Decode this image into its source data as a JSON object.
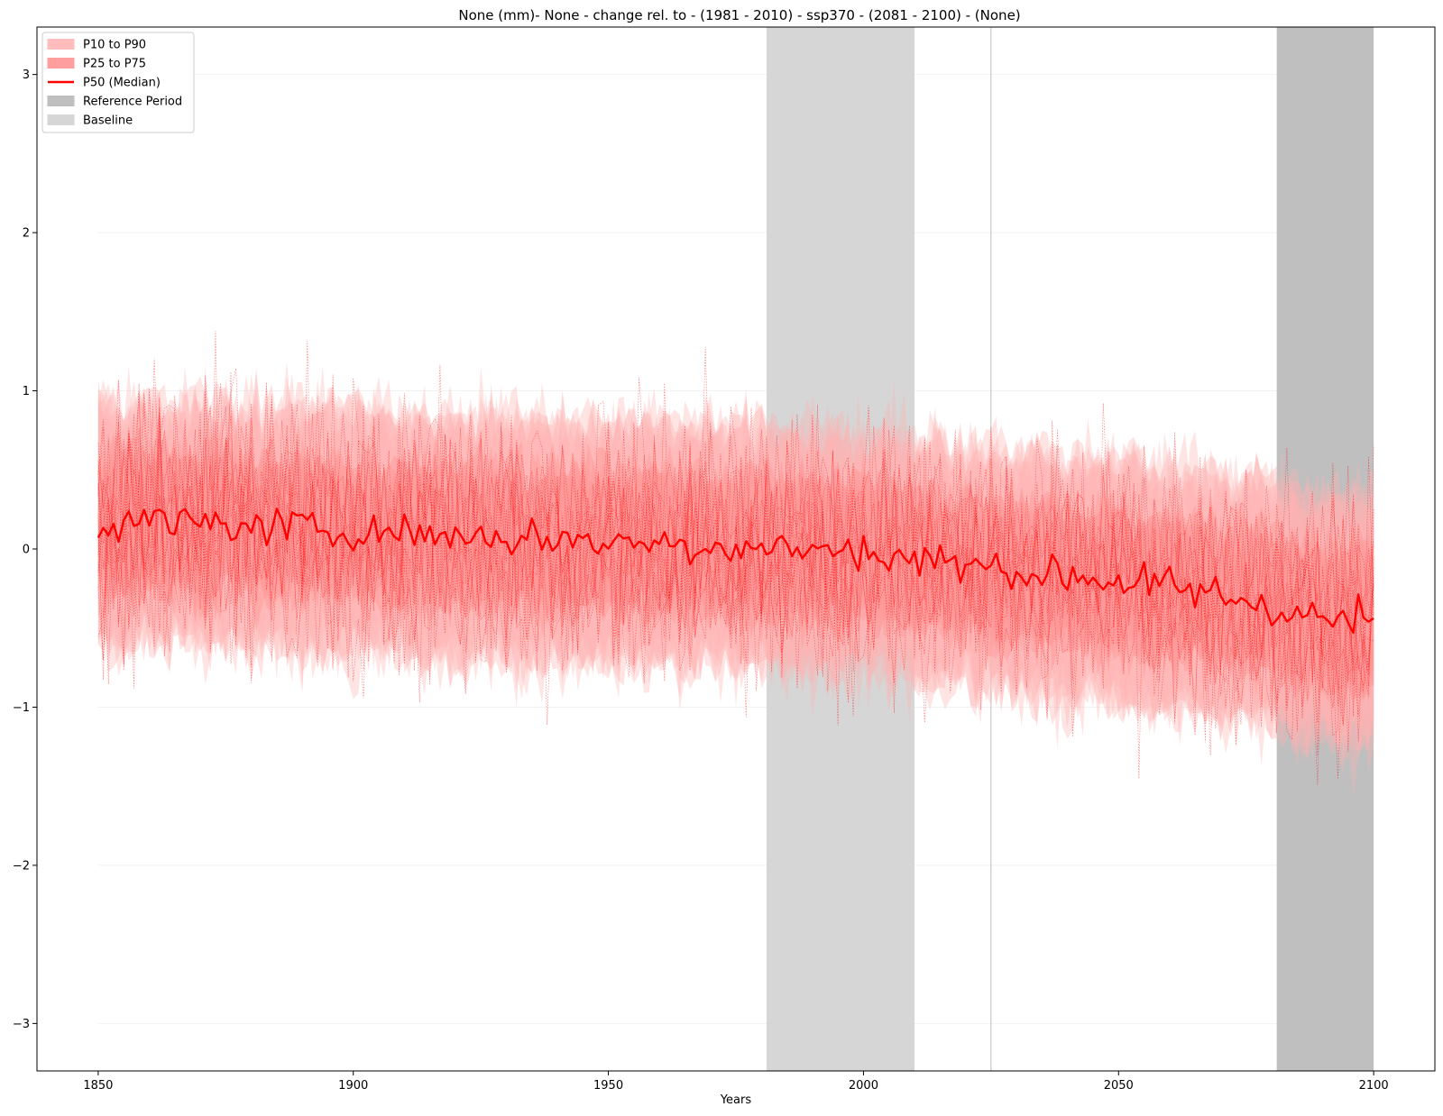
{
  "chart_data": {
    "type": "line",
    "title": "None (mm)- None - change rel. to - (1981 - 2010)  - ssp370  - (2081 - 2100) - (None)",
    "xlabel": "Years",
    "ylabel": "",
    "xlim": [
      1838,
      2112
    ],
    "ylim": [
      -3.3,
      3.3
    ],
    "x_ticks": [
      1850,
      1900,
      1950,
      2000,
      2050,
      2100
    ],
    "x_tick_labels": [
      "1850",
      "1900",
      "1950",
      "2000",
      "2050",
      "2100"
    ],
    "y_ticks": [
      -3,
      -2,
      -1,
      0,
      1,
      2,
      3
    ],
    "y_tick_labels": [
      "−3",
      "−2",
      "−1",
      "0",
      "1",
      "2",
      "3"
    ],
    "grid": "horizontal-faint",
    "legend_position": "upper-left",
    "colors": {
      "median": "#ff0000",
      "band_p10_p90": "#ffb3b3",
      "band_p25_p75": "#ff9999",
      "member_lines": "#ff0000",
      "reference_period": "#bfbfbf",
      "baseline": "#d6d6d6"
    },
    "legend": [
      {
        "label": "P10 to P90",
        "kind": "patch",
        "color": "#ffbcbc"
      },
      {
        "label": "P25 to P75",
        "kind": "patch",
        "color": "#ff9e9e"
      },
      {
        "label": "P50 (Median)",
        "kind": "line",
        "color": "#ff0000"
      },
      {
        "label": "Reference Period",
        "kind": "patch",
        "color": "#bfbfbf"
      },
      {
        "label": "Baseline",
        "kind": "patch",
        "color": "#d6d6d6"
      }
    ],
    "spans": [
      {
        "name": "Baseline",
        "x_start": 1981,
        "x_end": 2010,
        "color": "#d6d6d6"
      },
      {
        "name": "Reference Period",
        "x_start": 2081,
        "x_end": 2100,
        "color": "#bfbfbf"
      }
    ],
    "vline": {
      "x": 2025,
      "color": "#bfbfbf"
    },
    "x_start": 1850,
    "x_end": 2100,
    "series": [
      {
        "name": "P50 (Median)",
        "trend_points": [
          {
            "x": 1850,
            "y": 0.18
          },
          {
            "x": 1875,
            "y": 0.15
          },
          {
            "x": 1900,
            "y": 0.12
          },
          {
            "x": 1925,
            "y": 0.08
          },
          {
            "x": 1950,
            "y": 0.05
          },
          {
            "x": 1975,
            "y": 0.02
          },
          {
            "x": 2000,
            "y": -0.02
          },
          {
            "x": 2025,
            "y": -0.12
          },
          {
            "x": 2050,
            "y": -0.2
          },
          {
            "x": 2075,
            "y": -0.32
          },
          {
            "x": 2090,
            "y": -0.45
          },
          {
            "x": 2100,
            "y": -0.45
          }
        ]
      },
      {
        "name": "P25 to P75",
        "half_width": 0.38
      },
      {
        "name": "P10 to P90",
        "half_width": 0.72
      }
    ]
  }
}
